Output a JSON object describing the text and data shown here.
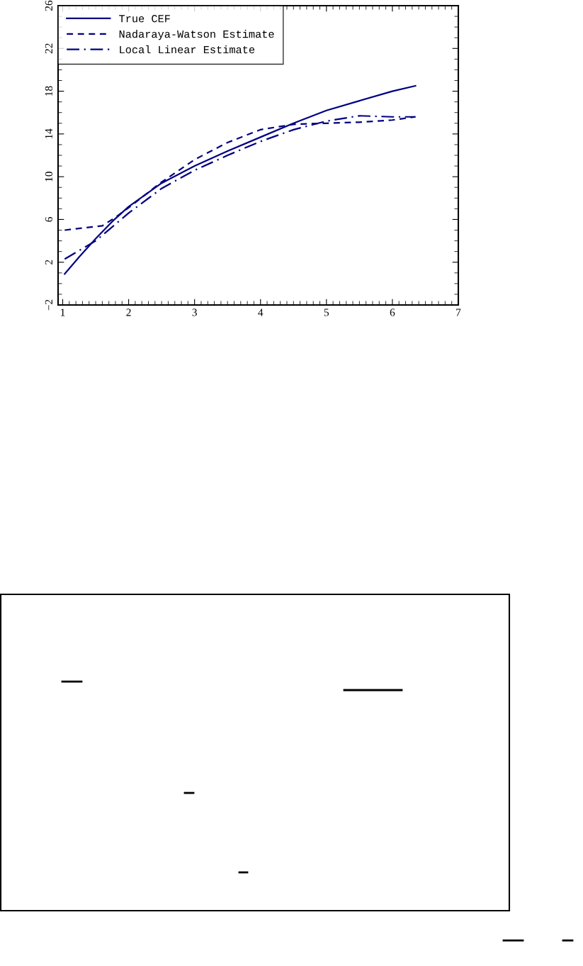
{
  "chart_data": {
    "type": "line",
    "xlim": [
      0.93,
      7
    ],
    "xticks": [
      1,
      2,
      3,
      4,
      5,
      6,
      7
    ],
    "ylim": [
      -2,
      26
    ],
    "yticks": [
      {
        "value": -2,
        "label": "−2"
      },
      2,
      6,
      10,
      14,
      18,
      22,
      26
    ],
    "grid": false,
    "legend": "top left",
    "marker": "none",
    "series": [
      {
        "name": "True CEF",
        "color": "#000080",
        "line_style": "solid",
        "x": [
          1.03,
          1.25,
          1.5,
          1.75,
          2.0,
          2.5,
          3.0,
          3.5,
          4.0,
          4.5,
          5.0,
          5.5,
          6.0,
          6.35
        ],
        "values": [
          0.9,
          2.5,
          4.2,
          5.8,
          7.2,
          9.4,
          11.0,
          12.4,
          13.7,
          15.0,
          16.2,
          17.1,
          18.0,
          18.5
        ]
      },
      {
        "name": "Nadaraya-Watson Estimate",
        "color": "#000080",
        "line_style": "dashed",
        "x": [
          1.03,
          1.3,
          1.6,
          1.8,
          2.0,
          2.5,
          3.0,
          3.5,
          4.0,
          4.5,
          5.0,
          5.5,
          6.0,
          6.35
        ],
        "values": [
          5.0,
          5.2,
          5.4,
          6.2,
          7.1,
          9.5,
          11.6,
          13.2,
          14.4,
          14.9,
          15.0,
          15.1,
          15.3,
          15.6
        ]
      },
      {
        "name": "Local Linear Estimate",
        "color": "#000080",
        "line_style": "dashdot",
        "x": [
          1.03,
          1.5,
          2.0,
          2.5,
          3.0,
          3.5,
          4.0,
          4.5,
          5.0,
          5.5,
          6.0,
          6.35
        ],
        "values": [
          2.3,
          4.0,
          6.6,
          8.9,
          10.6,
          12.0,
          13.3,
          14.4,
          15.2,
          15.7,
          15.6,
          15.6
        ]
      }
    ]
  }
}
